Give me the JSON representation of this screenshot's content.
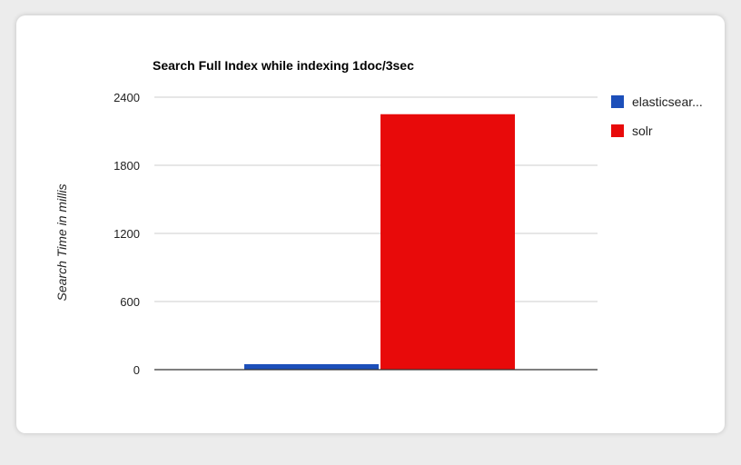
{
  "chart_data": {
    "type": "bar",
    "title": "Search Full Index while indexing 1doc/3sec",
    "xlabel": "",
    "ylabel": "Search Time in millis",
    "ylim": [
      0,
      2400
    ],
    "yticks": [
      "0",
      "600",
      "1200",
      "1800",
      "2400"
    ],
    "ytick_values": [
      0,
      600,
      1200,
      1800,
      2400
    ],
    "categories": [
      ""
    ],
    "series": [
      {
        "name": "elasticsear...",
        "values": [
          48
        ],
        "color": "#1c4fba"
      },
      {
        "name": "solr",
        "values": [
          2250
        ],
        "color": "#e80a0a"
      }
    ],
    "legend_position": "right",
    "grid": true
  }
}
